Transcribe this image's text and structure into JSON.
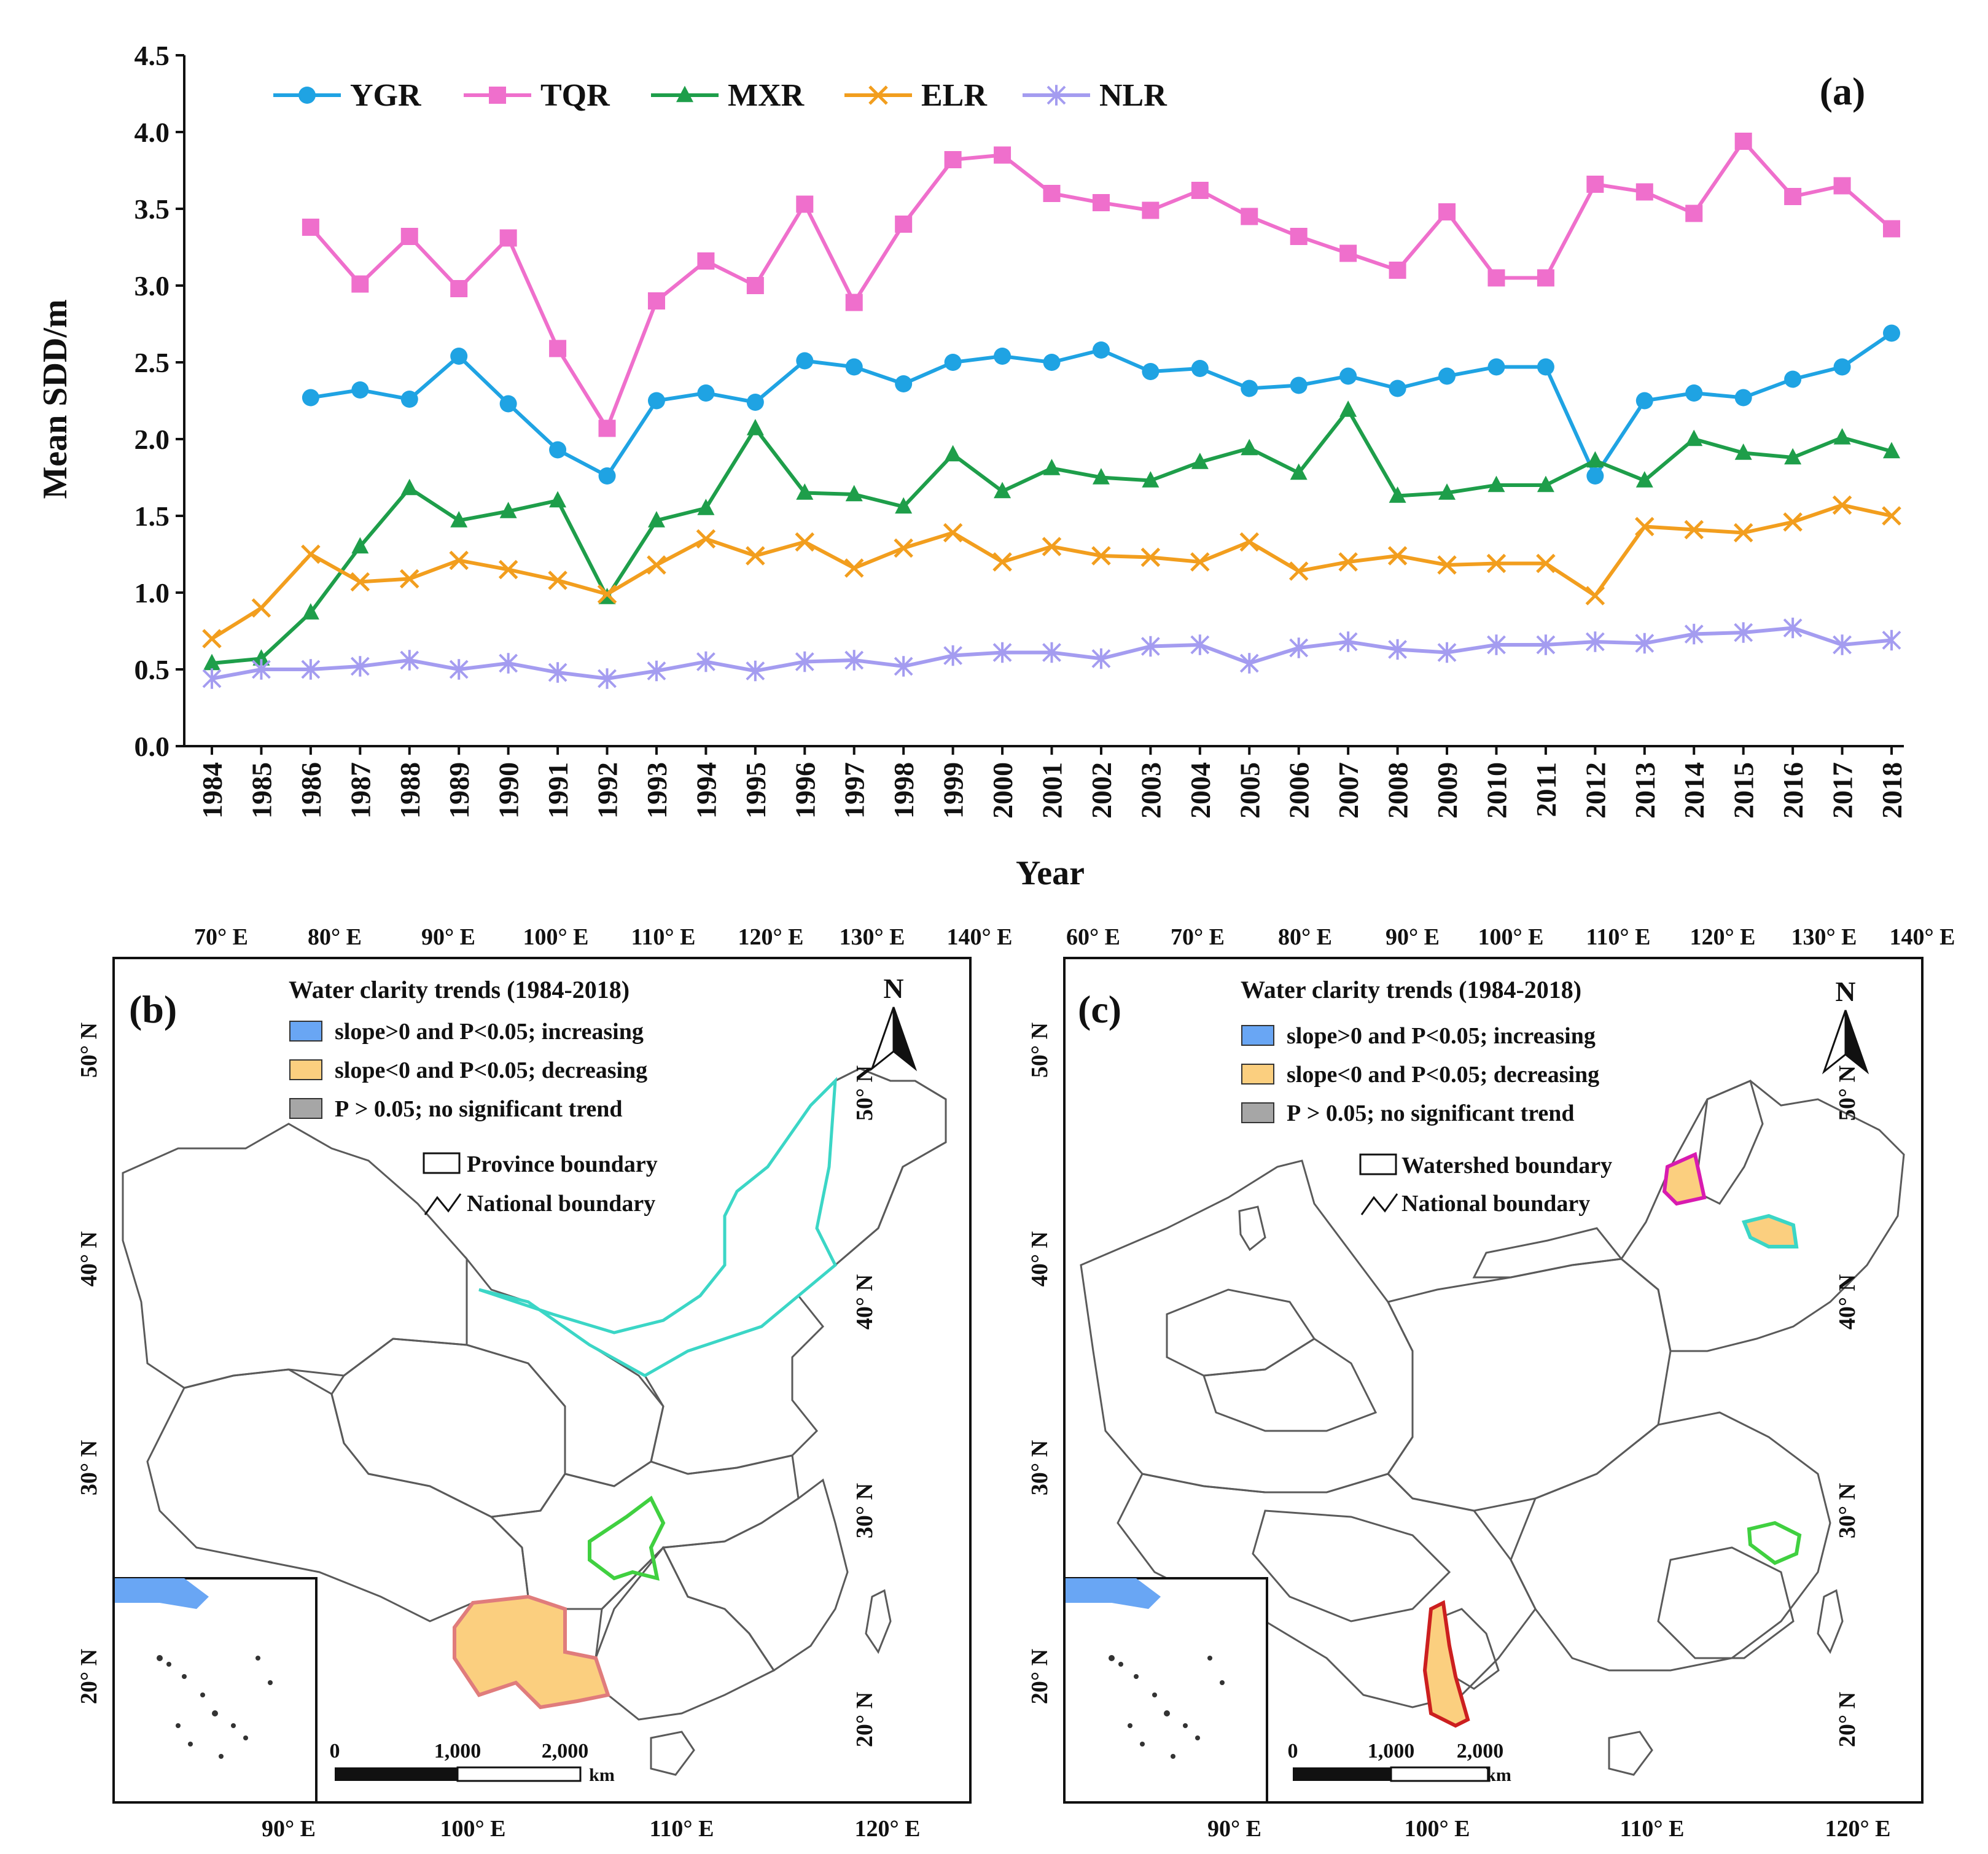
{
  "chart_data": [
    {
      "type": "line",
      "panel_label": "(a)",
      "xlabel": "Year",
      "ylabel": "Mean SDD/m",
      "ylim": [
        0,
        4.5
      ],
      "yticks": [
        "0.0",
        "0.5",
        "1.0",
        "1.5",
        "2.0",
        "2.5",
        "3.0",
        "3.5",
        "4.0",
        "4.5"
      ],
      "ytick_values": [
        0,
        0.5,
        1,
        1.5,
        2,
        2.5,
        3,
        3.5,
        4,
        4.5
      ],
      "categories": [
        "1984",
        "1985",
        "1986",
        "1987",
        "1988",
        "1989",
        "1990",
        "1991",
        "1992",
        "1993",
        "1994",
        "1995",
        "1996",
        "1997",
        "1998",
        "1999",
        "2000",
        "2001",
        "2002",
        "2003",
        "2004",
        "2005",
        "2006",
        "2007",
        "2008",
        "2009",
        "2010",
        "2011",
        "2012",
        "2013",
        "2014",
        "2015",
        "2016",
        "2017",
        "2018"
      ],
      "legend_position": "top-left",
      "series": [
        {
          "name": "YGR",
          "color": "#1fa3e3",
          "marker": "circle",
          "values": [
            null,
            null,
            2.27,
            2.32,
            2.26,
            2.54,
            2.23,
            1.93,
            1.76,
            2.25,
            2.3,
            2.24,
            2.51,
            2.47,
            2.36,
            2.5,
            2.54,
            2.5,
            2.58,
            2.44,
            2.46,
            2.33,
            2.35,
            2.41,
            2.33,
            2.41,
            2.47,
            2.47,
            1.76,
            2.25,
            2.3,
            2.27,
            2.39,
            2.47,
            2.69
          ]
        },
        {
          "name": "TQR",
          "color": "#ef6fcc",
          "marker": "square",
          "values": [
            null,
            null,
            3.38,
            3.01,
            3.32,
            2.98,
            3.31,
            2.59,
            2.07,
            2.9,
            3.16,
            3.0,
            3.53,
            2.89,
            3.4,
            3.82,
            3.85,
            3.6,
            3.54,
            3.49,
            3.62,
            3.45,
            3.32,
            3.21,
            3.1,
            3.48,
            3.05,
            3.05,
            3.66,
            3.61,
            3.47,
            3.94,
            3.58,
            3.65,
            3.37
          ]
        },
        {
          "name": "MXR",
          "color": "#1e9e4a",
          "marker": "triangle",
          "values": [
            0.54,
            0.57,
            0.87,
            1.3,
            1.68,
            1.47,
            1.53,
            1.6,
            0.97,
            1.47,
            1.55,
            2.07,
            1.65,
            1.64,
            1.56,
            1.9,
            1.66,
            1.81,
            1.75,
            1.73,
            1.85,
            1.94,
            1.78,
            2.19,
            1.63,
            1.65,
            1.7,
            1.7,
            1.86,
            1.73,
            2.0,
            1.91,
            1.88,
            2.01,
            1.92
          ]
        },
        {
          "name": "ELR",
          "color": "#f29e1e",
          "marker": "x",
          "values": [
            0.7,
            0.9,
            1.25,
            1.07,
            1.09,
            1.21,
            1.15,
            1.08,
            0.99,
            1.18,
            1.35,
            1.24,
            1.33,
            1.16,
            1.29,
            1.39,
            1.2,
            1.3,
            1.24,
            1.23,
            1.2,
            1.33,
            1.14,
            1.2,
            1.24,
            1.18,
            1.19,
            1.19,
            0.98,
            1.43,
            1.41,
            1.39,
            1.46,
            1.57,
            1.5
          ]
        },
        {
          "name": "NLR",
          "color": "#a49cf0",
          "marker": "star",
          "values": [
            0.44,
            0.5,
            0.5,
            0.52,
            0.56,
            0.5,
            0.54,
            0.48,
            0.44,
            0.49,
            0.55,
            0.49,
            0.55,
            0.56,
            0.52,
            0.59,
            0.61,
            0.61,
            0.57,
            0.65,
            0.66,
            0.54,
            0.64,
            0.68,
            0.63,
            0.61,
            0.66,
            0.66,
            0.68,
            0.67,
            0.73,
            0.74,
            0.77,
            0.66,
            0.69
          ]
        }
      ]
    }
  ],
  "maps": {
    "b": {
      "label": "(b)",
      "legend_title": "Water clarity trends (1984-2018)",
      "legend_items": [
        "slope>0 and P<0.05; increasing",
        "slope<0 and P<0.05; decreasing",
        "P > 0.05; no significant trend"
      ],
      "boundary_items": [
        "Province boundary",
        "National boundary"
      ],
      "north": "N",
      "top_ticks": [
        "70° E",
        "80° E",
        "90° E",
        "100° E",
        "110° E",
        "120° E",
        "130° E",
        "140° E"
      ],
      "bottom_ticks": [
        "90° E",
        "100° E",
        "110° E",
        "120° E"
      ],
      "left_ticks": [
        "50° N",
        "40° N",
        "30° N",
        "20° N"
      ],
      "right_ticks": [
        "50° N",
        "40° N",
        "30° N",
        "20° N"
      ],
      "scale": [
        "0",
        "1,000",
        "2,000",
        "km"
      ]
    },
    "c": {
      "label": "(c)",
      "legend_title": "Water clarity trends (1984-2018)",
      "legend_items": [
        "slope>0 and P<0.05; increasing",
        "slope<0 and P<0.05; decreasing",
        "P > 0.05; no significant trend"
      ],
      "boundary_items": [
        "Watershed boundary",
        "National boundary"
      ],
      "north": "N",
      "top_ticks": [
        "60° E",
        "70° E",
        "80° E",
        "90° E",
        "100° E",
        "110° E",
        "120° E",
        "130° E",
        "140° E"
      ],
      "bottom_ticks": [
        "90° E",
        "100° E",
        "110° E",
        "120° E"
      ],
      "left_ticks": [
        "50° N",
        "40° N",
        "30° N",
        "20° N"
      ],
      "right_ticks": [
        "50° N",
        "40° N",
        "30° N",
        "20° N"
      ],
      "scale": [
        "0",
        "1,000",
        "2,000",
        "km"
      ]
    }
  },
  "colors": {
    "increasing": "#69a6f4",
    "decreasing": "#fbcf7f",
    "no_trend": "#a6a6a6"
  }
}
